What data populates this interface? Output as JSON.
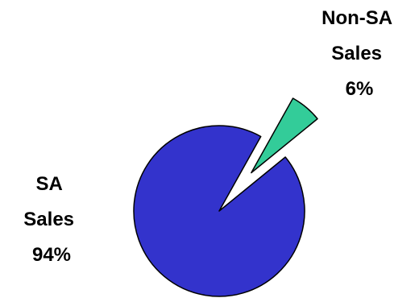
{
  "chart_data": {
    "type": "pie",
    "slices": [
      {
        "label_lines": [
          "SA",
          "Sales",
          "94%"
        ],
        "value": 94,
        "color": "#3333cc",
        "exploded": false
      },
      {
        "label_lines": [
          "Non-SA",
          "Sales",
          "6%"
        ],
        "value": 6,
        "color": "#33cc99",
        "exploded": true
      }
    ],
    "legend": "none"
  }
}
